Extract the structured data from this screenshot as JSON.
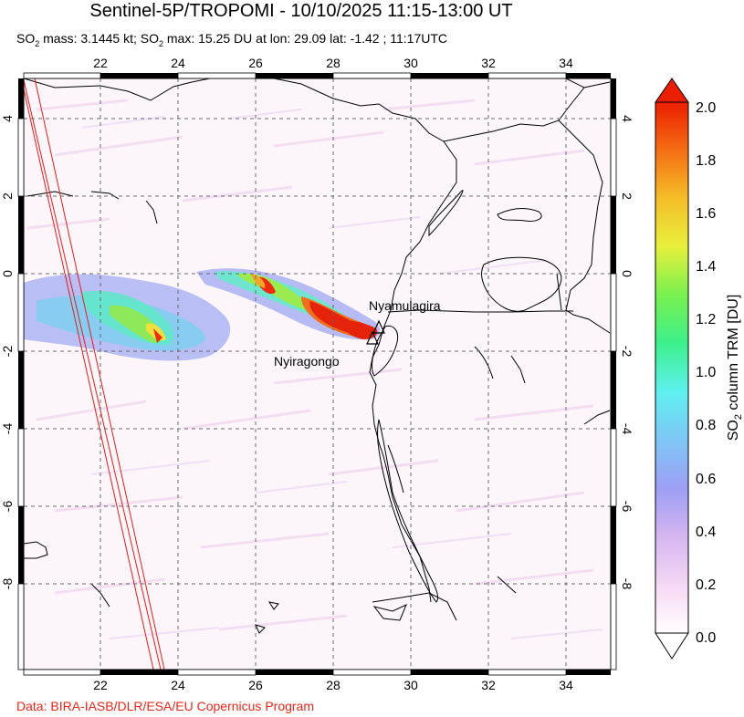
{
  "header": {
    "title": "Sentinel-5P/TROPOMI - 10/10/2025 11:15-13:00 UT",
    "so2_prefix": "SO",
    "sub_2": "2",
    "mass_text": " mass: 3.1445 kt; SO",
    "max_text": " max: 15.25 DU at lon: 29.09 lat: -1.42 ; 11:17UTC"
  },
  "map": {
    "lon_ticks": [
      "22",
      "24",
      "26",
      "28",
      "30",
      "32",
      "34"
    ],
    "lat_ticks": [
      "4",
      "2",
      "0",
      "-2",
      "-4",
      "-6",
      "-8"
    ],
    "volcanoes": [
      {
        "name": "Nyamulagira"
      },
      {
        "name": "Nyiragongo"
      }
    ]
  },
  "colorbar": {
    "label": "SO2 column TRM [DU]",
    "label_prefix": "SO",
    "label_sub": "2",
    "label_suffix": " column TRM [DU]",
    "ticks": [
      "2.0",
      "1.8",
      "1.6",
      "1.4",
      "1.2",
      "1.0",
      "0.8",
      "0.6",
      "0.4",
      "0.2",
      "0.0"
    ],
    "colors": [
      "#ffffff",
      "#f7d7f5",
      "#d5b6f0",
      "#9d9ff5",
      "#7fc6f5",
      "#5ff0f0",
      "#3cf08c",
      "#78f050",
      "#e7f03c",
      "#f5be28",
      "#f56e14",
      "#eb1e00"
    ]
  },
  "footer": {
    "credit": "Data: BIRA-IASB/DLR/ESA/EU Copernicus Program"
  }
}
